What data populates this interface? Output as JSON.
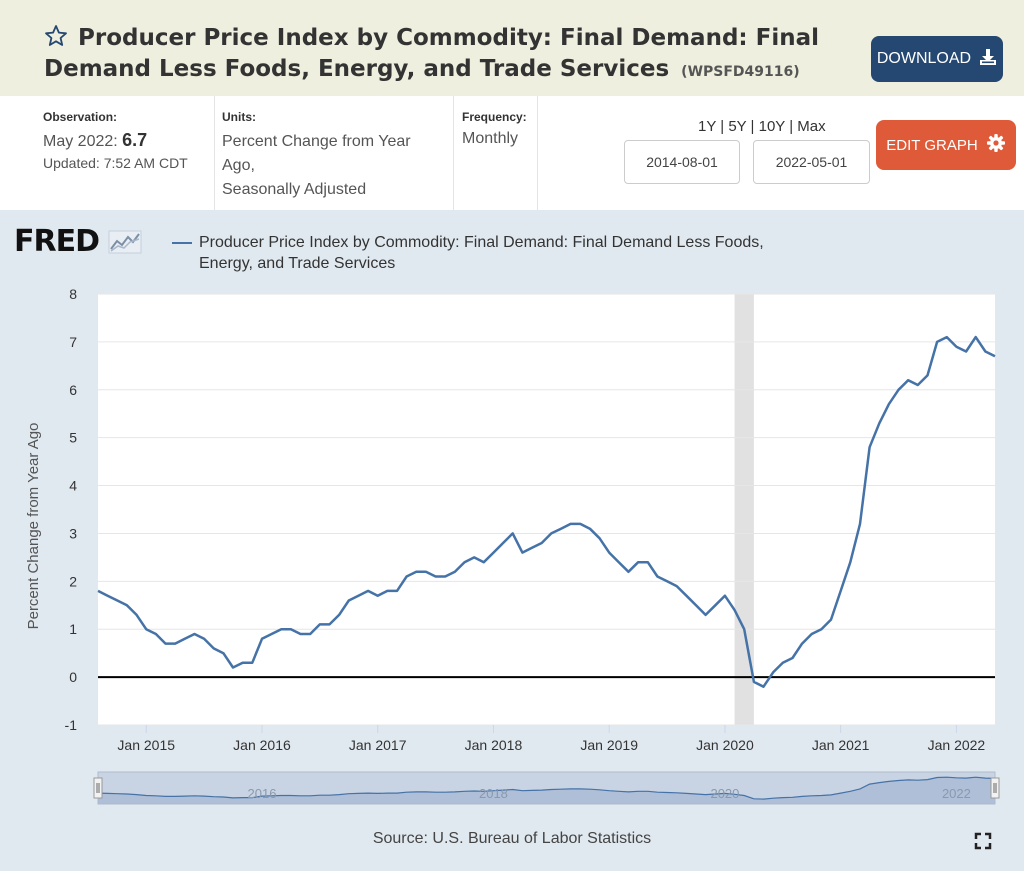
{
  "header": {
    "title": "Producer Price Index by Commodity: Final Demand: Final Demand Less Foods, Energy, and Trade Services",
    "series_id": "(WPSFD49116)",
    "download_label": "DOWNLOAD"
  },
  "meta": {
    "observation_label": "Observation:",
    "observation_date": "May 2022:",
    "observation_value": "6.7",
    "updated": "Updated: 7:52 AM CDT",
    "units_label": "Units:",
    "units_value": "Percent Change from Year Ago,",
    "units_adj": "Seasonally Adjusted",
    "frequency_label": "Frequency:",
    "frequency_value": "Monthly"
  },
  "controls": {
    "range_links": [
      "1Y",
      "5Y",
      "10Y",
      "Max"
    ],
    "start_date": "2014-08-01",
    "end_date": "2022-05-01",
    "edit_label": "EDIT GRAPH"
  },
  "logo": "FRED",
  "source": "Source: U.S. Bureau of Labor Statistics",
  "colors": {
    "series": "#4572a7",
    "header_bg": "#efefdf",
    "download": "#244871",
    "edit": "#df5a38",
    "chart_bg": "#e1e9f0"
  },
  "chart_data": {
    "type": "line",
    "title": "",
    "xlabel": "",
    "ylabel": "Percent Change from Year Ago",
    "ylim": [
      -1,
      8
    ],
    "yticks": [
      -1,
      0,
      1,
      2,
      3,
      4,
      5,
      6,
      7,
      8
    ],
    "xlim": [
      "2014-08-01",
      "2022-05-01"
    ],
    "xticks": [
      "2015-01-01",
      "2016-01-01",
      "2017-01-01",
      "2018-01-01",
      "2019-01-01",
      "2020-01-01",
      "2021-01-01",
      "2022-01-01"
    ],
    "xtick_labels": [
      "Jan 2015",
      "Jan 2016",
      "Jan 2017",
      "Jan 2018",
      "Jan 2019",
      "Jan 2020",
      "Jan 2021",
      "Jan 2022"
    ],
    "navigator_labels": [
      "2016",
      "2018",
      "2020",
      "2022"
    ],
    "recession": [
      "2020-02-01",
      "2020-04-01"
    ],
    "series": [
      {
        "name": "Producer Price Index by Commodity: Final Demand: Final Demand Less Foods, Energy, and Trade Services",
        "start": "2014-08",
        "values": [
          1.8,
          1.7,
          1.6,
          1.5,
          1.3,
          1.0,
          0.9,
          0.7,
          0.7,
          0.8,
          0.9,
          0.8,
          0.6,
          0.5,
          0.2,
          0.3,
          0.3,
          0.8,
          0.9,
          1.0,
          1.0,
          0.9,
          0.9,
          1.1,
          1.1,
          1.3,
          1.6,
          1.7,
          1.8,
          1.7,
          1.8,
          1.8,
          2.1,
          2.2,
          2.2,
          2.1,
          2.1,
          2.2,
          2.4,
          2.5,
          2.4,
          2.6,
          2.8,
          3.0,
          2.6,
          2.7,
          2.8,
          3.0,
          3.1,
          3.2,
          3.2,
          3.1,
          2.9,
          2.6,
          2.4,
          2.2,
          2.4,
          2.4,
          2.1,
          2.0,
          1.9,
          1.7,
          1.5,
          1.3,
          1.5,
          1.7,
          1.4,
          1.0,
          -0.1,
          -0.2,
          0.1,
          0.3,
          0.4,
          0.7,
          0.9,
          1.0,
          1.2,
          1.8,
          2.4,
          3.2,
          4.8,
          5.3,
          5.7,
          6.0,
          6.2,
          6.1,
          6.3,
          7.0,
          7.1,
          6.9,
          6.8,
          7.1,
          6.8,
          6.7
        ]
      }
    ]
  }
}
